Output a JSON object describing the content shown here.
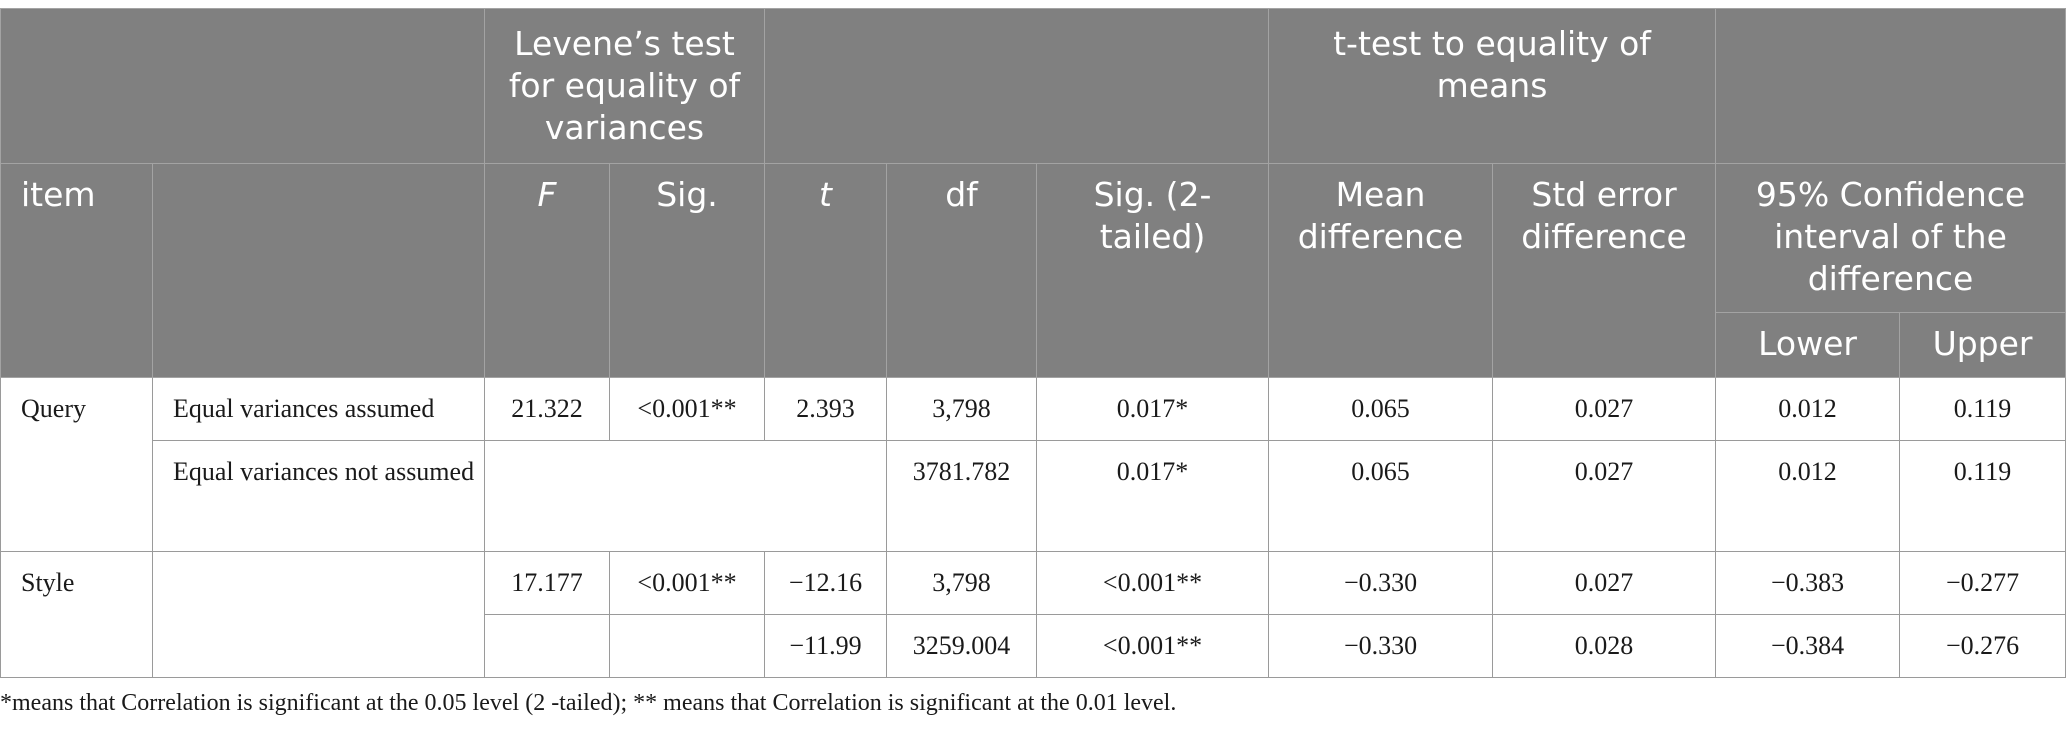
{
  "table": {
    "group_headers": {
      "levene": "Levene’s test for equality of variances",
      "ttest": "t-test to equality of means"
    },
    "columns": {
      "item": "item",
      "f": "F",
      "sig": "Sig.",
      "t": "t",
      "df": "df",
      "sig2": "Sig. (2-tailed)",
      "mean_diff": "Mean difference",
      "std_err": "Std error difference",
      "ci": "95% Confidence interval of the difference",
      "lower": "Lower",
      "upper": "Upper"
    },
    "rows": [
      {
        "item": "Query",
        "assumption": "Equal variances assumed",
        "f": "21.322",
        "sig": "<0.001**",
        "t": "2.393",
        "df": "3,798",
        "sig2": "0.017*",
        "mean_diff": "0.065",
        "std_err": "0.027",
        "lower": "0.012",
        "upper": "0.119"
      },
      {
        "assumption": "Equal variances not assumed",
        "df": "3781.782",
        "sig2": "0.017*",
        "mean_diff": "0.065",
        "std_err": "0.027",
        "lower": "0.012",
        "upper": "0.119"
      },
      {
        "item": "Style",
        "f": "17.177",
        "sig": "<0.001**",
        "t": "−12.16",
        "df": "3,798",
        "sig2": "<0.001**",
        "mean_diff": "−0.330",
        "std_err": "0.027",
        "lower": "−0.383",
        "upper": "−0.277"
      },
      {
        "t": "−11.99",
        "df": "3259.004",
        "sig2": "<0.001**",
        "mean_diff": "−0.330",
        "std_err": "0.028",
        "lower": "−0.384",
        "upper": "−0.276"
      }
    ],
    "footnote": "*means that Correlation is significant at the 0.05 level (2 -tailed); ** means that Correlation is significant at the 0.01 level."
  }
}
